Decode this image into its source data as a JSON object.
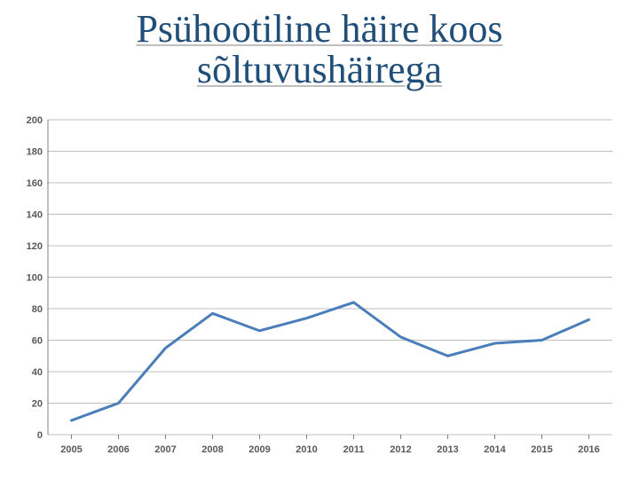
{
  "title_line1": "Psühootiline häire koos",
  "title_line2": "sõltuvushäirega",
  "chart": {
    "type": "line",
    "background_color": "#ffffff",
    "grid_color": "#bfbfbf",
    "axis_color": "#808080",
    "line_color": "#4a7ebb",
    "line_width": 3,
    "ylim": [
      0,
      200
    ],
    "ytick_step": 20,
    "y_ticks": [
      0,
      20,
      40,
      60,
      80,
      100,
      120,
      140,
      160,
      180,
      200
    ],
    "x_categories": [
      "2005",
      "2006",
      "2007",
      "2008",
      "2009",
      "2010",
      "2011",
      "2012",
      "2013",
      "2014",
      "2015",
      "2016"
    ],
    "values": [
      9,
      20,
      55,
      77,
      66,
      74,
      84,
      62,
      50,
      58,
      60,
      73
    ],
    "label_fontsize": 11,
    "font_family": "Arial"
  }
}
